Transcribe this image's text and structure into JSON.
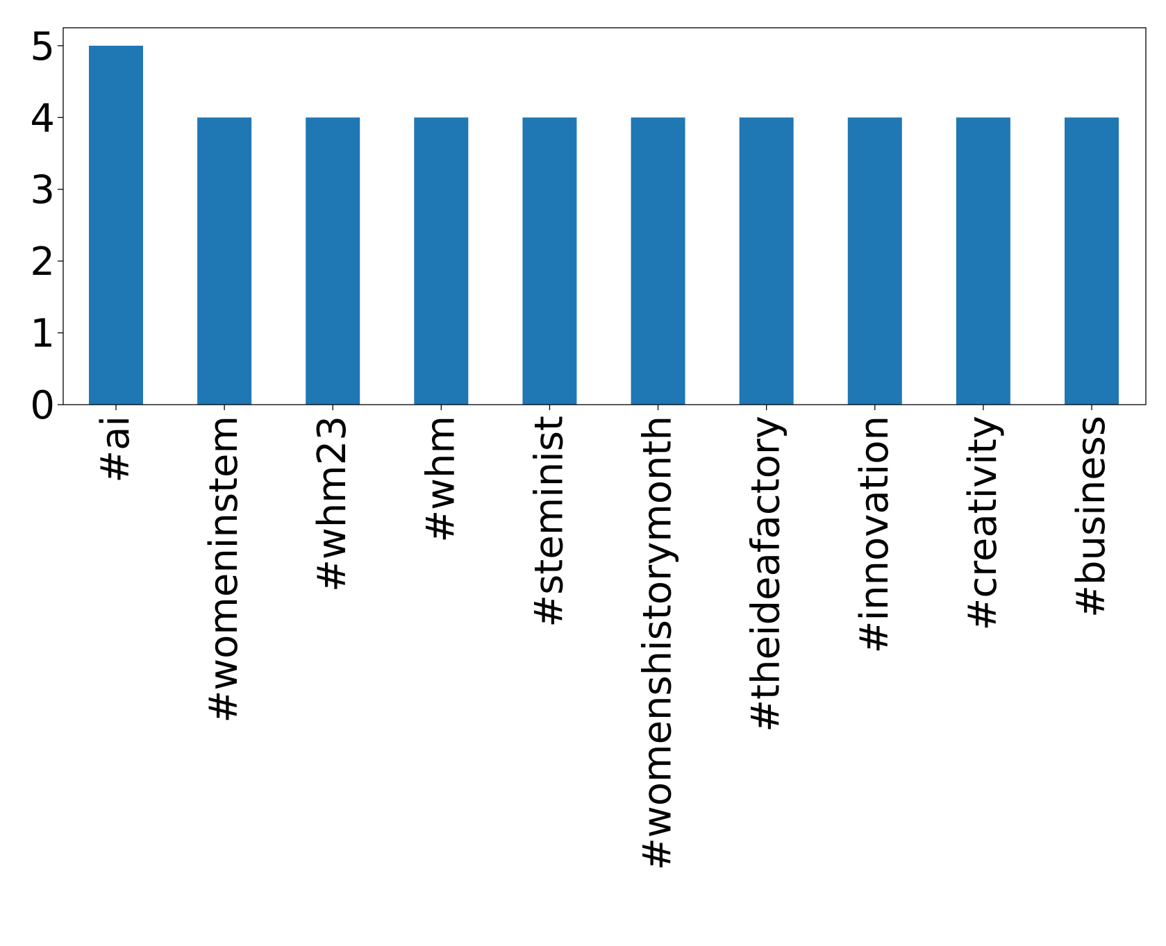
{
  "chart_data": {
    "type": "bar",
    "title": "",
    "xlabel": "",
    "ylabel": "",
    "categories": [
      "#ai",
      "#womeninstem",
      "#whm23",
      "#whm",
      "#steminist",
      "#womenshistorymonth",
      "#theideafactory",
      "#innovation",
      "#creativity",
      "#business"
    ],
    "values": [
      5,
      4,
      4,
      4,
      4,
      4,
      4,
      4,
      4,
      4
    ],
    "ylim": [
      0,
      5.25
    ],
    "yticks": [
      0,
      1,
      2,
      3,
      4,
      5
    ],
    "grid": false,
    "legend": "none",
    "bar_color": "#1f77b4"
  }
}
